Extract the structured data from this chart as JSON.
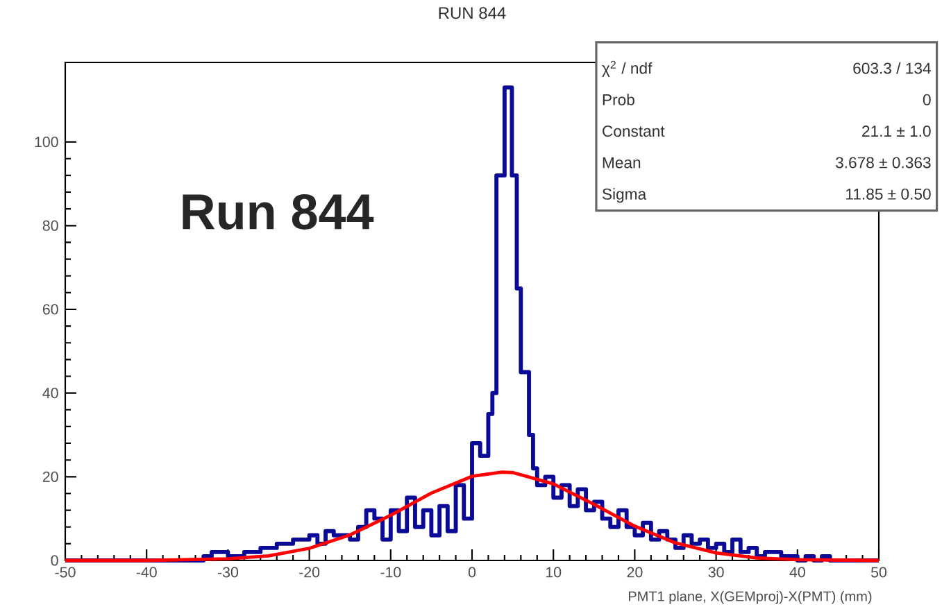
{
  "chart_data": {
    "type": "step",
    "title": "RUN 844",
    "xlabel": "PMT1 plane, X(GEMproj)-X(PMT) (mm)",
    "xlim": [
      -50,
      50
    ],
    "ylim": [
      0,
      119
    ],
    "xticks": [
      -50,
      -40,
      -30,
      -20,
      -10,
      0,
      10,
      20,
      30,
      40,
      50
    ],
    "yticks": [
      0,
      20,
      40,
      60,
      80,
      100
    ],
    "grid": false,
    "series": [
      {
        "color": "#0a0a96",
        "x": [
          -50,
          -33,
          -32,
          -30,
          -28,
          -26,
          -24,
          -22,
          -20,
          -19,
          -18,
          -17,
          -15,
          -14,
          -13,
          -12,
          -11,
          -10,
          -9,
          -8,
          -7,
          -6,
          -5,
          -4,
          -3,
          -2,
          -1,
          0,
          1,
          2,
          2.5,
          3,
          4,
          4.9,
          5.5,
          6,
          7,
          7.5,
          8,
          9,
          10,
          11,
          12,
          13,
          14,
          15,
          16,
          17,
          18,
          19,
          20,
          21,
          22,
          23,
          24,
          25,
          26,
          27,
          28,
          29,
          30,
          31,
          32,
          33,
          34,
          35,
          36,
          38,
          40,
          41,
          42,
          43,
          44,
          50
        ],
        "values": [
          0,
          1,
          2,
          1,
          2,
          3,
          4,
          5,
          6,
          4,
          7,
          6,
          5,
          8,
          12,
          10,
          5,
          12,
          7,
          15,
          8,
          12,
          6,
          13,
          7,
          18,
          10,
          28,
          25,
          35,
          40,
          92,
          113,
          92,
          65,
          45,
          30,
          22,
          18,
          20,
          15,
          18,
          13,
          17,
          12,
          14,
          10,
          8,
          12,
          8,
          6,
          9,
          5,
          7,
          5,
          3,
          6,
          4,
          5,
          3,
          4,
          2,
          5,
          2,
          3,
          1,
          2,
          1,
          0,
          1,
          0,
          1,
          0,
          0
        ]
      },
      {
        "type": "line",
        "color": "#ff0000",
        "x": [
          -50,
          -40,
          -30,
          -25,
          -20,
          -15,
          -10,
          -5,
          0,
          3.7,
          5,
          10,
          15,
          20,
          25,
          30,
          35,
          40,
          50
        ],
        "values": [
          0,
          0,
          0.4,
          1.1,
          2.9,
          6.1,
          10.8,
          16.1,
          20.1,
          21.1,
          21,
          18.3,
          13.4,
          8.2,
          4.2,
          1.8,
          0.6,
          0.2,
          0
        ]
      }
    ],
    "annotations": [
      "Run 844",
      "χ$^{2}$ / ndf",
      "603.3 / 134",
      "Prob",
      "0",
      "Constant",
      "21.1 ± 1.0",
      "Mean",
      "3.678 ± 0.363",
      "Sigma",
      "11.85 ± 0.50"
    ]
  }
}
